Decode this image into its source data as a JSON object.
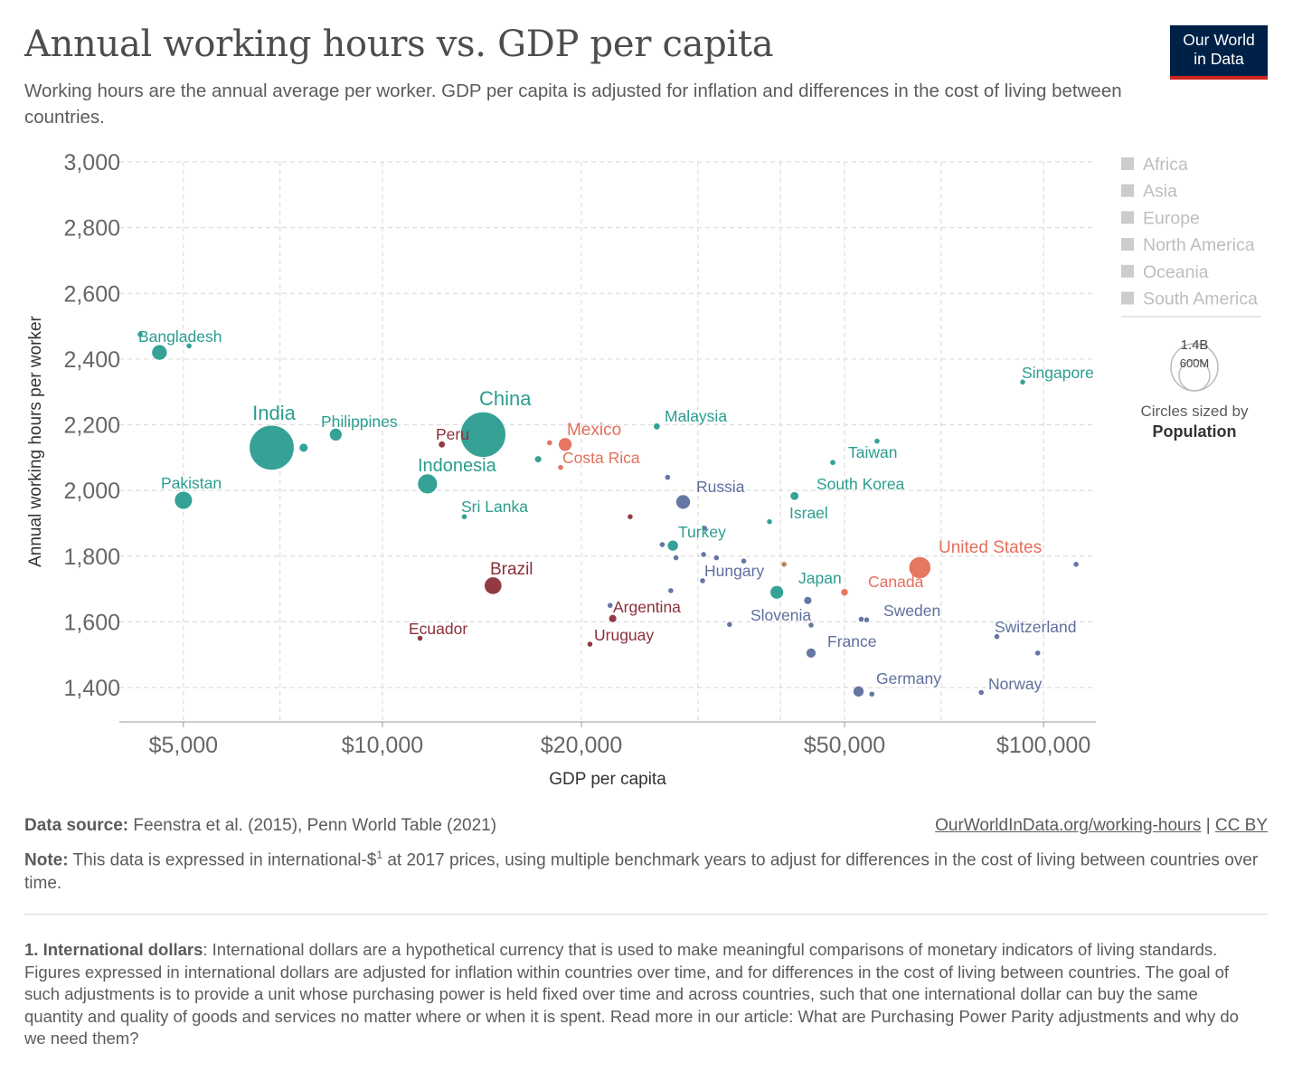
{
  "header": {
    "title": "Annual working hours vs. GDP per capita",
    "subtitle": "Working hours are the annual average per worker. GDP per capita is adjusted for inflation and differences in the cost of living between countries.",
    "logo_line1": "Our World",
    "logo_line2": "in Data"
  },
  "legend": {
    "items": [
      "Africa",
      "Asia",
      "Europe",
      "North America",
      "Oceania",
      "South America"
    ],
    "size_key_large": "1.4B",
    "size_key_small": "600M",
    "size_caption": "Circles sized by",
    "size_variable": "Population"
  },
  "colors": {
    "Asia": "#2a9d8f",
    "Europe": "#5e6f9e",
    "North America": "#e56e5a",
    "South America": "#8c2f39",
    "Oceania": "#b3804d",
    "legend_inactive": "#cccccc",
    "grid": "#dddddd",
    "axis_text": "#666666"
  },
  "chart_data": {
    "type": "scatter",
    "xscale": "log",
    "xlabel": "GDP per capita",
    "ylabel": "Annual working hours per worker",
    "xlim": [
      4000,
      120000
    ],
    "ylim": [
      1300,
      3000
    ],
    "xticks": [
      5000,
      10000,
      20000,
      50000,
      100000
    ],
    "xtick_labels": [
      "$5,000",
      "$10,000",
      "$20,000",
      "$50,000",
      "$100,000"
    ],
    "xminor": [
      3000,
      30000
    ],
    "xgrid_minor": [
      7000,
      40000,
      70000
    ],
    "yticks": [
      1400,
      1600,
      1800,
      2000,
      2200,
      2400,
      2600,
      2800,
      3000
    ],
    "ytick_labels": [
      "1,400",
      "1,600",
      "1,800",
      "2,000",
      "2,200",
      "2,400",
      "2,600",
      "2,800",
      "3,000"
    ],
    "points": [
      {
        "label": "Bangladesh",
        "gdp": 4600,
        "hours": 2420,
        "region": "Asia",
        "pop": 165
      },
      {
        "label": "India",
        "gdp": 6800,
        "hours": 2130,
        "region": "Asia",
        "pop": 1380
      },
      {
        "label": "Pakistan",
        "gdp": 5000,
        "hours": 1970,
        "region": "Asia",
        "pop": 220
      },
      {
        "label": "Philippines",
        "gdp": 8500,
        "hours": 2170,
        "region": "Asia",
        "pop": 110
      },
      {
        "label": "China",
        "gdp": 14200,
        "hours": 2170,
        "region": "Asia",
        "pop": 1410
      },
      {
        "label": "Indonesia",
        "gdp": 11700,
        "hours": 2020,
        "region": "Asia",
        "pop": 270
      },
      {
        "label": "Sri Lanka",
        "gdp": 13300,
        "hours": 1920,
        "region": "Asia",
        "pop": 21
      },
      {
        "label": "Peru",
        "gdp": 12300,
        "hours": 2140,
        "region": "South America",
        "pop": 33
      },
      {
        "label": "Mexico",
        "gdp": 18900,
        "hours": 2140,
        "region": "North America",
        "pop": 128
      },
      {
        "label": "Costa Rica",
        "gdp": 18600,
        "hours": 2070,
        "region": "North America",
        "pop": 5
      },
      {
        "label": "Malaysia",
        "gdp": 26000,
        "hours": 2195,
        "region": "Asia",
        "pop": 32
      },
      {
        "label": "Russia",
        "gdp": 28500,
        "hours": 1965,
        "region": "Europe",
        "pop": 144
      },
      {
        "label": "Turkey",
        "gdp": 27500,
        "hours": 1832,
        "region": "Asia",
        "pop": 83
      },
      {
        "label": "Hungary",
        "gdp": 30500,
        "hours": 1725,
        "region": "Europe",
        "pop": 10
      },
      {
        "label": "Brazil",
        "gdp": 14700,
        "hours": 1710,
        "region": "South America",
        "pop": 212
      },
      {
        "label": "Argentina",
        "gdp": 22300,
        "hours": 1610,
        "region": "South America",
        "pop": 45
      },
      {
        "label": "Ecuador",
        "gdp": 11400,
        "hours": 1550,
        "region": "South America",
        "pop": 17
      },
      {
        "label": "Uruguay",
        "gdp": 20600,
        "hours": 1532,
        "region": "South America",
        "pop": 3.5
      },
      {
        "label": "Singapore",
        "gdp": 93000,
        "hours": 2330,
        "region": "Asia",
        "pop": 5.7
      },
      {
        "label": "Taiwan",
        "gdp": 48000,
        "hours": 2085,
        "region": "Asia",
        "pop": 24
      },
      {
        "label": "South Korea",
        "gdp": 42000,
        "hours": 1983,
        "region": "Asia",
        "pop": 52
      },
      {
        "label": "Israel",
        "gdp": 38500,
        "hours": 1905,
        "region": "Asia",
        "pop": 9
      },
      {
        "label": "Japan",
        "gdp": 39500,
        "hours": 1690,
        "region": "Asia",
        "pop": 126
      },
      {
        "label": "United States",
        "gdp": 65000,
        "hours": 1765,
        "region": "North America",
        "pop": 331
      },
      {
        "label": "Canada",
        "gdp": 50000,
        "hours": 1690,
        "region": "North America",
        "pop": 38
      },
      {
        "label": "Slovenia",
        "gdp": 33500,
        "hours": 1592,
        "region": "Europe",
        "pop": 2.1
      },
      {
        "label": "Sweden",
        "gdp": 54000,
        "hours": 1606,
        "region": "Europe",
        "pop": 10
      },
      {
        "label": "France",
        "gdp": 44500,
        "hours": 1505,
        "region": "Europe",
        "pop": 67
      },
      {
        "label": "Germany",
        "gdp": 52500,
        "hours": 1388,
        "region": "Europe",
        "pop": 83
      },
      {
        "label": "Switzerland",
        "gdp": 85000,
        "hours": 1555,
        "region": "Europe",
        "pop": 8.6
      },
      {
        "label": "Norway",
        "gdp": 80500,
        "hours": 1385,
        "region": "Europe",
        "pop": 5.4
      }
    ],
    "unlabeled": [
      {
        "gdp": 4300,
        "hours": 2475,
        "region": "Asia",
        "pop": 4
      },
      {
        "gdp": 5100,
        "hours": 2440,
        "region": "Asia",
        "pop": 4
      },
      {
        "gdp": 7600,
        "hours": 2130,
        "region": "Asia",
        "pop": 55
      },
      {
        "gdp": 17200,
        "hours": 2095,
        "region": "Asia",
        "pop": 35
      },
      {
        "gdp": 17900,
        "hours": 2145,
        "region": "North America",
        "pop": 3
      },
      {
        "gdp": 23700,
        "hours": 1920,
        "region": "South America",
        "pop": 3
      },
      {
        "gdp": 27000,
        "hours": 2040,
        "region": "Europe",
        "pop": 3
      },
      {
        "gdp": 26500,
        "hours": 1835,
        "region": "Europe",
        "pop": 3
      },
      {
        "gdp": 27800,
        "hours": 1795,
        "region": "Europe",
        "pop": 3
      },
      {
        "gdp": 27300,
        "hours": 1695,
        "region": "Europe",
        "pop": 3
      },
      {
        "gdp": 30700,
        "hours": 1885,
        "region": "Europe",
        "pop": 5
      },
      {
        "gdp": 30600,
        "hours": 1805,
        "region": "Europe",
        "pop": 4
      },
      {
        "gdp": 32000,
        "hours": 1795,
        "region": "Europe",
        "pop": 4
      },
      {
        "gdp": 35200,
        "hours": 1785,
        "region": "Europe",
        "pop": 3
      },
      {
        "gdp": 22100,
        "hours": 1650,
        "region": "Europe",
        "pop": 3
      },
      {
        "gdp": 40500,
        "hours": 1775,
        "region": "Oceania",
        "pop": 3
      },
      {
        "gdp": 44000,
        "hours": 1665,
        "region": "Europe",
        "pop": 45
      },
      {
        "gdp": 44500,
        "hours": 1590,
        "region": "Europe",
        "pop": 5
      },
      {
        "gdp": 53000,
        "hours": 1608,
        "region": "Europe",
        "pop": 5
      },
      {
        "gdp": 55000,
        "hours": 1380,
        "region": "Europe",
        "pop": 5
      },
      {
        "gdp": 56000,
        "hours": 2150,
        "region": "Asia",
        "pop": 4
      },
      {
        "gdp": 98000,
        "hours": 1505,
        "region": "Europe",
        "pop": 4
      },
      {
        "gdp": 112000,
        "hours": 1775,
        "region": "Europe",
        "pop": 3
      }
    ]
  },
  "footer": {
    "source_label": "Data source:",
    "source_text": "Feenstra et al. (2015), Penn World Table (2021)",
    "url": "OurWorldInData.org/working-hours",
    "separator": "|",
    "license": "CC BY",
    "note_label": "Note:",
    "note_text_a": "This data is expressed in international-$",
    "note_sup": "1",
    "note_text_b": " at 2017 prices, using multiple benchmark years to adjust for differences in the cost of living between countries over time.",
    "fn_label": "1. International dollars",
    "fn_text": ": International dollars are a hypothetical currency that is used to make meaningful comparisons of monetary indicators of living standards. Figures expressed in international dollars are adjusted for inflation within countries over time, and for differences in the cost of living between countries. The goal of such adjustments is to provide a unit whose purchasing power is held fixed over time and across countries, such that one international dollar can buy the same quantity and quality of goods and services no matter where or when it is spent. Read more in our article: What are Purchasing Power Parity adjustments and why do we need them?"
  }
}
